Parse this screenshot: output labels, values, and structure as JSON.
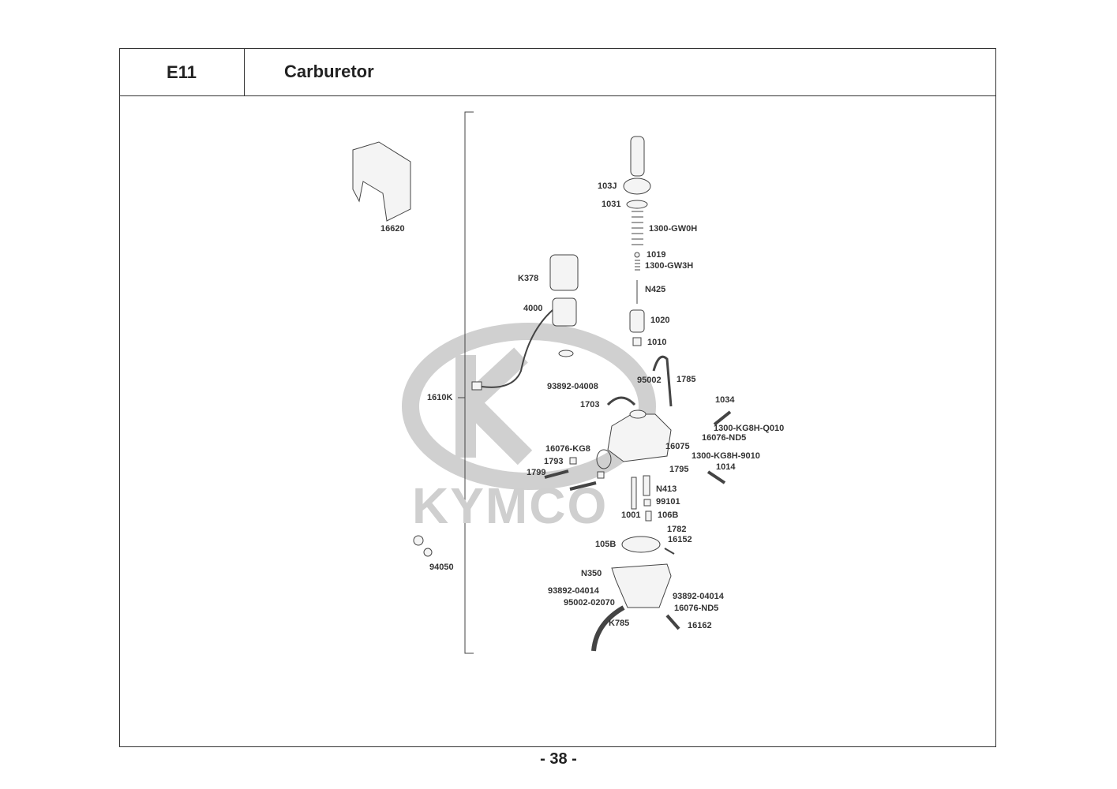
{
  "header": {
    "section_code": "E11",
    "title": "Carburetor"
  },
  "watermark": {
    "logo_text": "KYMCO",
    "color": "#cccccc"
  },
  "diagram": {
    "callouts": [
      "16620",
      "K378",
      "4000",
      "1610K",
      "103J",
      "1031",
      "1300-GW0H",
      "1019",
      "1300-GW3H",
      "N425",
      "1020",
      "1010",
      "95002",
      "1785",
      "93892-04008",
      "1703",
      "1034",
      "1300-KG8H-Q010",
      "16076-ND5",
      "16076-KG8",
      "16075",
      "1300-KG8H-9010",
      "1793",
      "1795",
      "1014",
      "1799",
      "N413",
      "99101",
      "1001",
      "106B",
      "1782",
      "16152",
      "105B",
      "N350",
      "94050",
      "93892-04014",
      "93892-04014",
      "95002-02070",
      "16076-ND5",
      "K785",
      "16162"
    ]
  },
  "footer": {
    "page_number": "- 38 -"
  }
}
